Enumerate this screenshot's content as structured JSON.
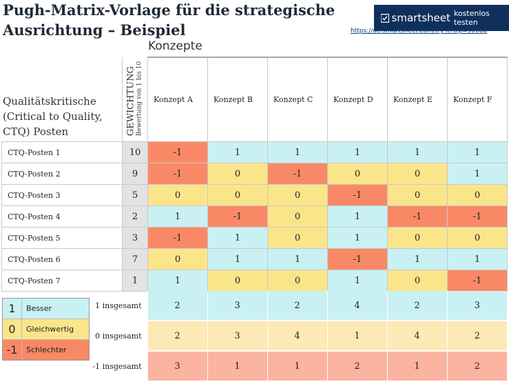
{
  "title": "Pugh-Matrix-Vorlage für die strategische Ausrichtung – Beispiel",
  "banner": {
    "brand": "smartsheet",
    "cta": "kostenlos testen",
    "url": "https://de.smartsheet.com/try-it?trp=50088"
  },
  "section_label": "Konzepte",
  "ctq_header": "Qualitätskritische (Critical to Quality, CTQ) Posten",
  "weight_header": {
    "main": "GEWICHTUNG",
    "sub": "Bewertung von 1 bis 10"
  },
  "concepts": [
    "Konzept A",
    "Konzept B",
    "Konzept C",
    "Konzept D",
    "Konzept E",
    "Konzept F"
  ],
  "rows": [
    {
      "label": "CTQ-Posten 1",
      "weight": "10",
      "values": [
        "-1",
        "1",
        "1",
        "1",
        "1",
        "1"
      ]
    },
    {
      "label": "CTQ-Posten 2",
      "weight": "9",
      "values": [
        "-1",
        "0",
        "-1",
        "0",
        "0",
        "1"
      ]
    },
    {
      "label": "CTQ-Posten 3",
      "weight": "5",
      "values": [
        "0",
        "0",
        "0",
        "-1",
        "0",
        "0"
      ]
    },
    {
      "label": "CTQ-Posten 4",
      "weight": "2",
      "values": [
        "1",
        "-1",
        "0",
        "1",
        "-1",
        "-1"
      ]
    },
    {
      "label": "CTQ-Posten 5",
      "weight": "3",
      "values": [
        "-1",
        "1",
        "0",
        "1",
        "0",
        "0"
      ]
    },
    {
      "label": "CTQ-Posten 6",
      "weight": "7",
      "values": [
        "0",
        "1",
        "1",
        "-1",
        "1",
        "1"
      ]
    },
    {
      "label": "CTQ-Posten 7",
      "weight": "1",
      "values": [
        "1",
        "0",
        "0",
        "1",
        "0",
        "-1"
      ]
    }
  ],
  "totals": [
    {
      "label": "1 insgesamt",
      "values": [
        "2",
        "3",
        "2",
        "4",
        "2",
        "3"
      ]
    },
    {
      "label": "0 insgesamt",
      "values": [
        "2",
        "3",
        "4",
        "1",
        "4",
        "2"
      ]
    },
    {
      "label": "-1 insgesamt",
      "values": [
        "3",
        "1",
        "1",
        "2",
        "1",
        "2"
      ]
    }
  ],
  "legend": [
    {
      "symbol": "1",
      "text": "Besser",
      "color": "#c9f1f4"
    },
    {
      "symbol": "0",
      "text": "Gleichwertig",
      "color": "#fbe58a"
    },
    {
      "symbol": "-1",
      "text": "Schlechter",
      "color": "#f98966"
    }
  ],
  "colors": {
    "better": "#c9f1f4",
    "equal": "#fbe58a",
    "worse": "#f98966",
    "banner": "#0f2f5c"
  }
}
